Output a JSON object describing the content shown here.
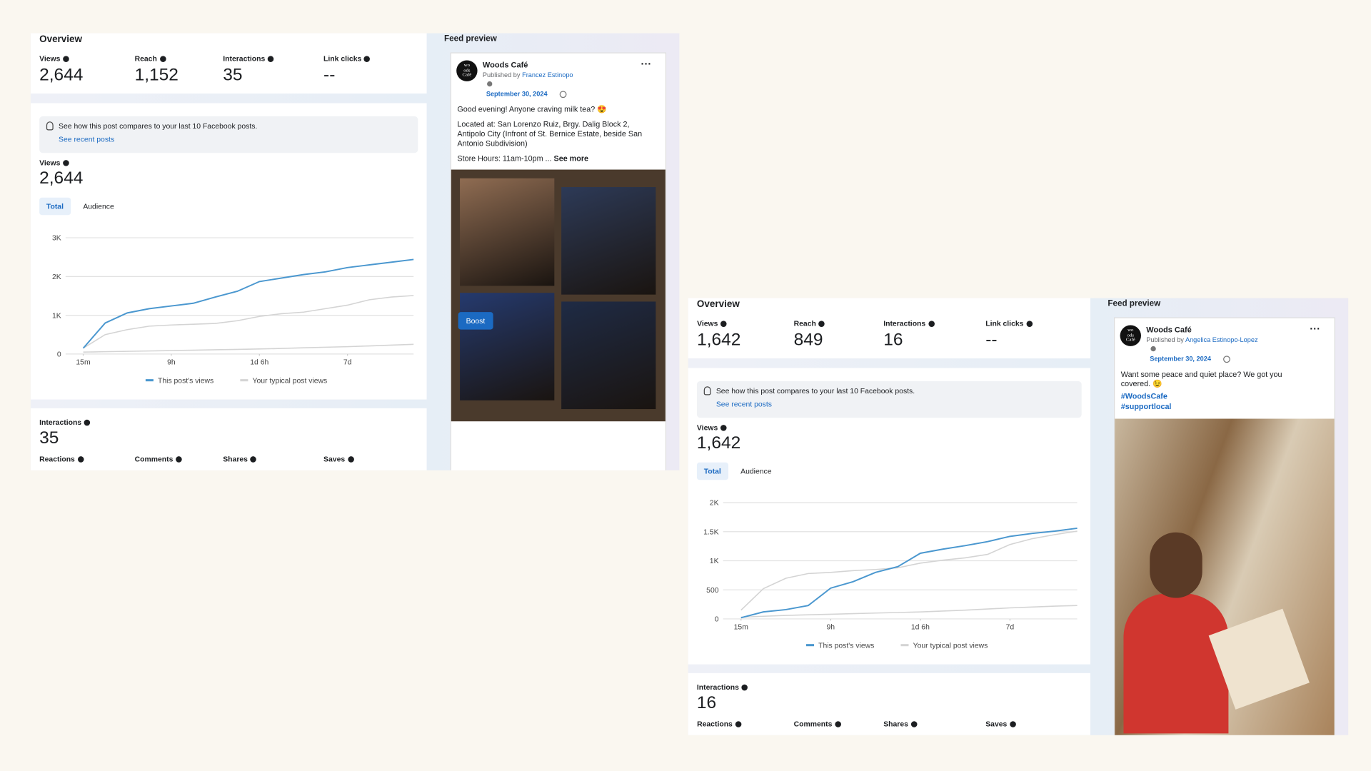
{
  "panels": [
    {
      "overview": {
        "title": "Overview",
        "metrics": [
          {
            "label": "Views",
            "value": "2,644"
          },
          {
            "label": "Reach",
            "value": "1,152"
          },
          {
            "label": "Interactions",
            "value": "35"
          },
          {
            "label": "Link clicks",
            "value": "--"
          }
        ]
      },
      "compare": {
        "text": "See how this post compares to your last 10 Facebook posts.",
        "link": "See recent posts"
      },
      "views": {
        "label": "Views",
        "value": "2,644"
      },
      "tabs": [
        "Total",
        "Audience"
      ],
      "chart_data": {
        "type": "line",
        "x": [
          0,
          0.25,
          0.5,
          0.75,
          1,
          1.25,
          1.5,
          1.75,
          2,
          2.25,
          2.5,
          2.75,
          3,
          3.25,
          3.5,
          3.75
        ],
        "xlim": [
          -0.2,
          3.75
        ],
        "xticks": [
          {
            "value": 0,
            "label": "15m"
          },
          {
            "value": 1,
            "label": "9h"
          },
          {
            "value": 2,
            "label": "1d 6h"
          },
          {
            "value": 3,
            "label": "7d"
          }
        ],
        "ylim": [
          0,
          3000
        ],
        "yticks": [
          0,
          {
            "value": 1000,
            "label": "1K"
          },
          {
            "value": 2000,
            "label": "2K"
          },
          {
            "value": 3000,
            "label": "3K"
          }
        ],
        "grid": true,
        "series": [
          {
            "name": "This post's views",
            "color": "#4a97cf",
            "values": [
              150,
              800,
              1060,
              1170,
              1240,
              1310,
              1470,
              1620,
              1870,
              1960,
              2050,
              2120,
              2230,
              2300,
              2370,
              2440
            ]
          },
          {
            "name": "Your typical post views",
            "color": "#d4d4d4",
            "values": [
              150,
              500,
              630,
              720,
              750,
              770,
              790,
              860,
              970,
              1040,
              1080,
              1170,
              1260,
              1400,
              1470,
              1510
            ]
          },
          {
            "color": "#d4d4d4",
            "values": [
              50,
              60,
              70,
              80,
              90,
              100,
              110,
              120,
              130,
              145,
              160,
              175,
              190,
              210,
              230,
              250
            ]
          }
        ]
      },
      "interactions": {
        "label": "Interactions",
        "value": "35",
        "metrics": [
          "Reactions",
          "Comments",
          "Shares",
          "Saves"
        ]
      },
      "feed": {
        "title": "Feed preview",
        "logo": [
          "wo",
          "ods",
          "Café"
        ],
        "page_name": "Woods Café",
        "published_by": "Published by",
        "author": "Francez Estinopo",
        "date": "September 30, 2024",
        "lines": [
          "Good evening! Anyone craving milk tea? 😍",
          "Located at: San Lorenzo Ruiz, Brgy. Dalig Block 2,",
          "Antipolo City (Infront of St. Bernice Estate, beside San",
          "Antonio Subdivision)",
          "Store Hours: 11am-10pm ..."
        ],
        "see_more": "See more",
        "hashtags": [],
        "button": "Boost"
      }
    },
    {
      "overview": {
        "title": "Overview",
        "metrics": [
          {
            "label": "Views",
            "value": "1,642"
          },
          {
            "label": "Reach",
            "value": "849"
          },
          {
            "label": "Interactions",
            "value": "16"
          },
          {
            "label": "Link clicks",
            "value": "--"
          }
        ]
      },
      "compare": {
        "text": "See how this post compares to your last 10 Facebook posts.",
        "link": "See recent posts"
      },
      "views": {
        "label": "Views",
        "value": "1,642"
      },
      "tabs": [
        "Total",
        "Audience"
      ],
      "chart_data": {
        "type": "line",
        "x": [
          0,
          0.25,
          0.5,
          0.75,
          1,
          1.25,
          1.5,
          1.75,
          2,
          2.25,
          2.5,
          2.75,
          3,
          3.25,
          3.5,
          3.75
        ],
        "xlim": [
          -0.2,
          3.75
        ],
        "xticks": [
          {
            "value": 0,
            "label": "15m"
          },
          {
            "value": 1,
            "label": "9h"
          },
          {
            "value": 2,
            "label": "1d 6h"
          },
          {
            "value": 3,
            "label": "7d"
          }
        ],
        "ylim": [
          0,
          2000
        ],
        "yticks": [
          0,
          500,
          {
            "value": 1000,
            "label": "1K"
          },
          {
            "value": 1500,
            "label": "1.5K"
          },
          {
            "value": 2000,
            "label": "2K"
          }
        ],
        "grid": true,
        "series": [
          {
            "name": "This post's views",
            "color": "#4a97cf",
            "values": [
              20,
              120,
              160,
              230,
              530,
              640,
              800,
              900,
              1130,
              1200,
              1260,
              1330,
              1420,
              1470,
              1510,
              1560
            ]
          },
          {
            "name": "Your typical post views",
            "color": "#d4d4d4",
            "values": [
              150,
              520,
              700,
              780,
              800,
              830,
              850,
              880,
              960,
              1010,
              1050,
              1110,
              1280,
              1380,
              1450,
              1510
            ]
          },
          {
            "color": "#d4d4d4",
            "values": [
              30,
              45,
              60,
              70,
              80,
              90,
              100,
              110,
              120,
              135,
              150,
              170,
              190,
              205,
              220,
              230
            ]
          }
        ]
      },
      "interactions": {
        "label": "Interactions",
        "value": "16",
        "metrics": [
          "Reactions",
          "Comments",
          "Shares",
          "Saves"
        ]
      },
      "feed": {
        "title": "Feed preview",
        "logo": [
          "wo",
          "ods",
          "Café"
        ],
        "page_name": "Woods Café",
        "published_by": "Published by",
        "author": "Angelica Estinopo-Lopez",
        "date": "September 30, 2024",
        "lines": [
          "Want some peace and quiet place? We got you",
          "covered. 😉"
        ],
        "see_more": "",
        "hashtags": [
          "#WoodsCafe",
          "#supportlocal"
        ]
      }
    }
  ]
}
